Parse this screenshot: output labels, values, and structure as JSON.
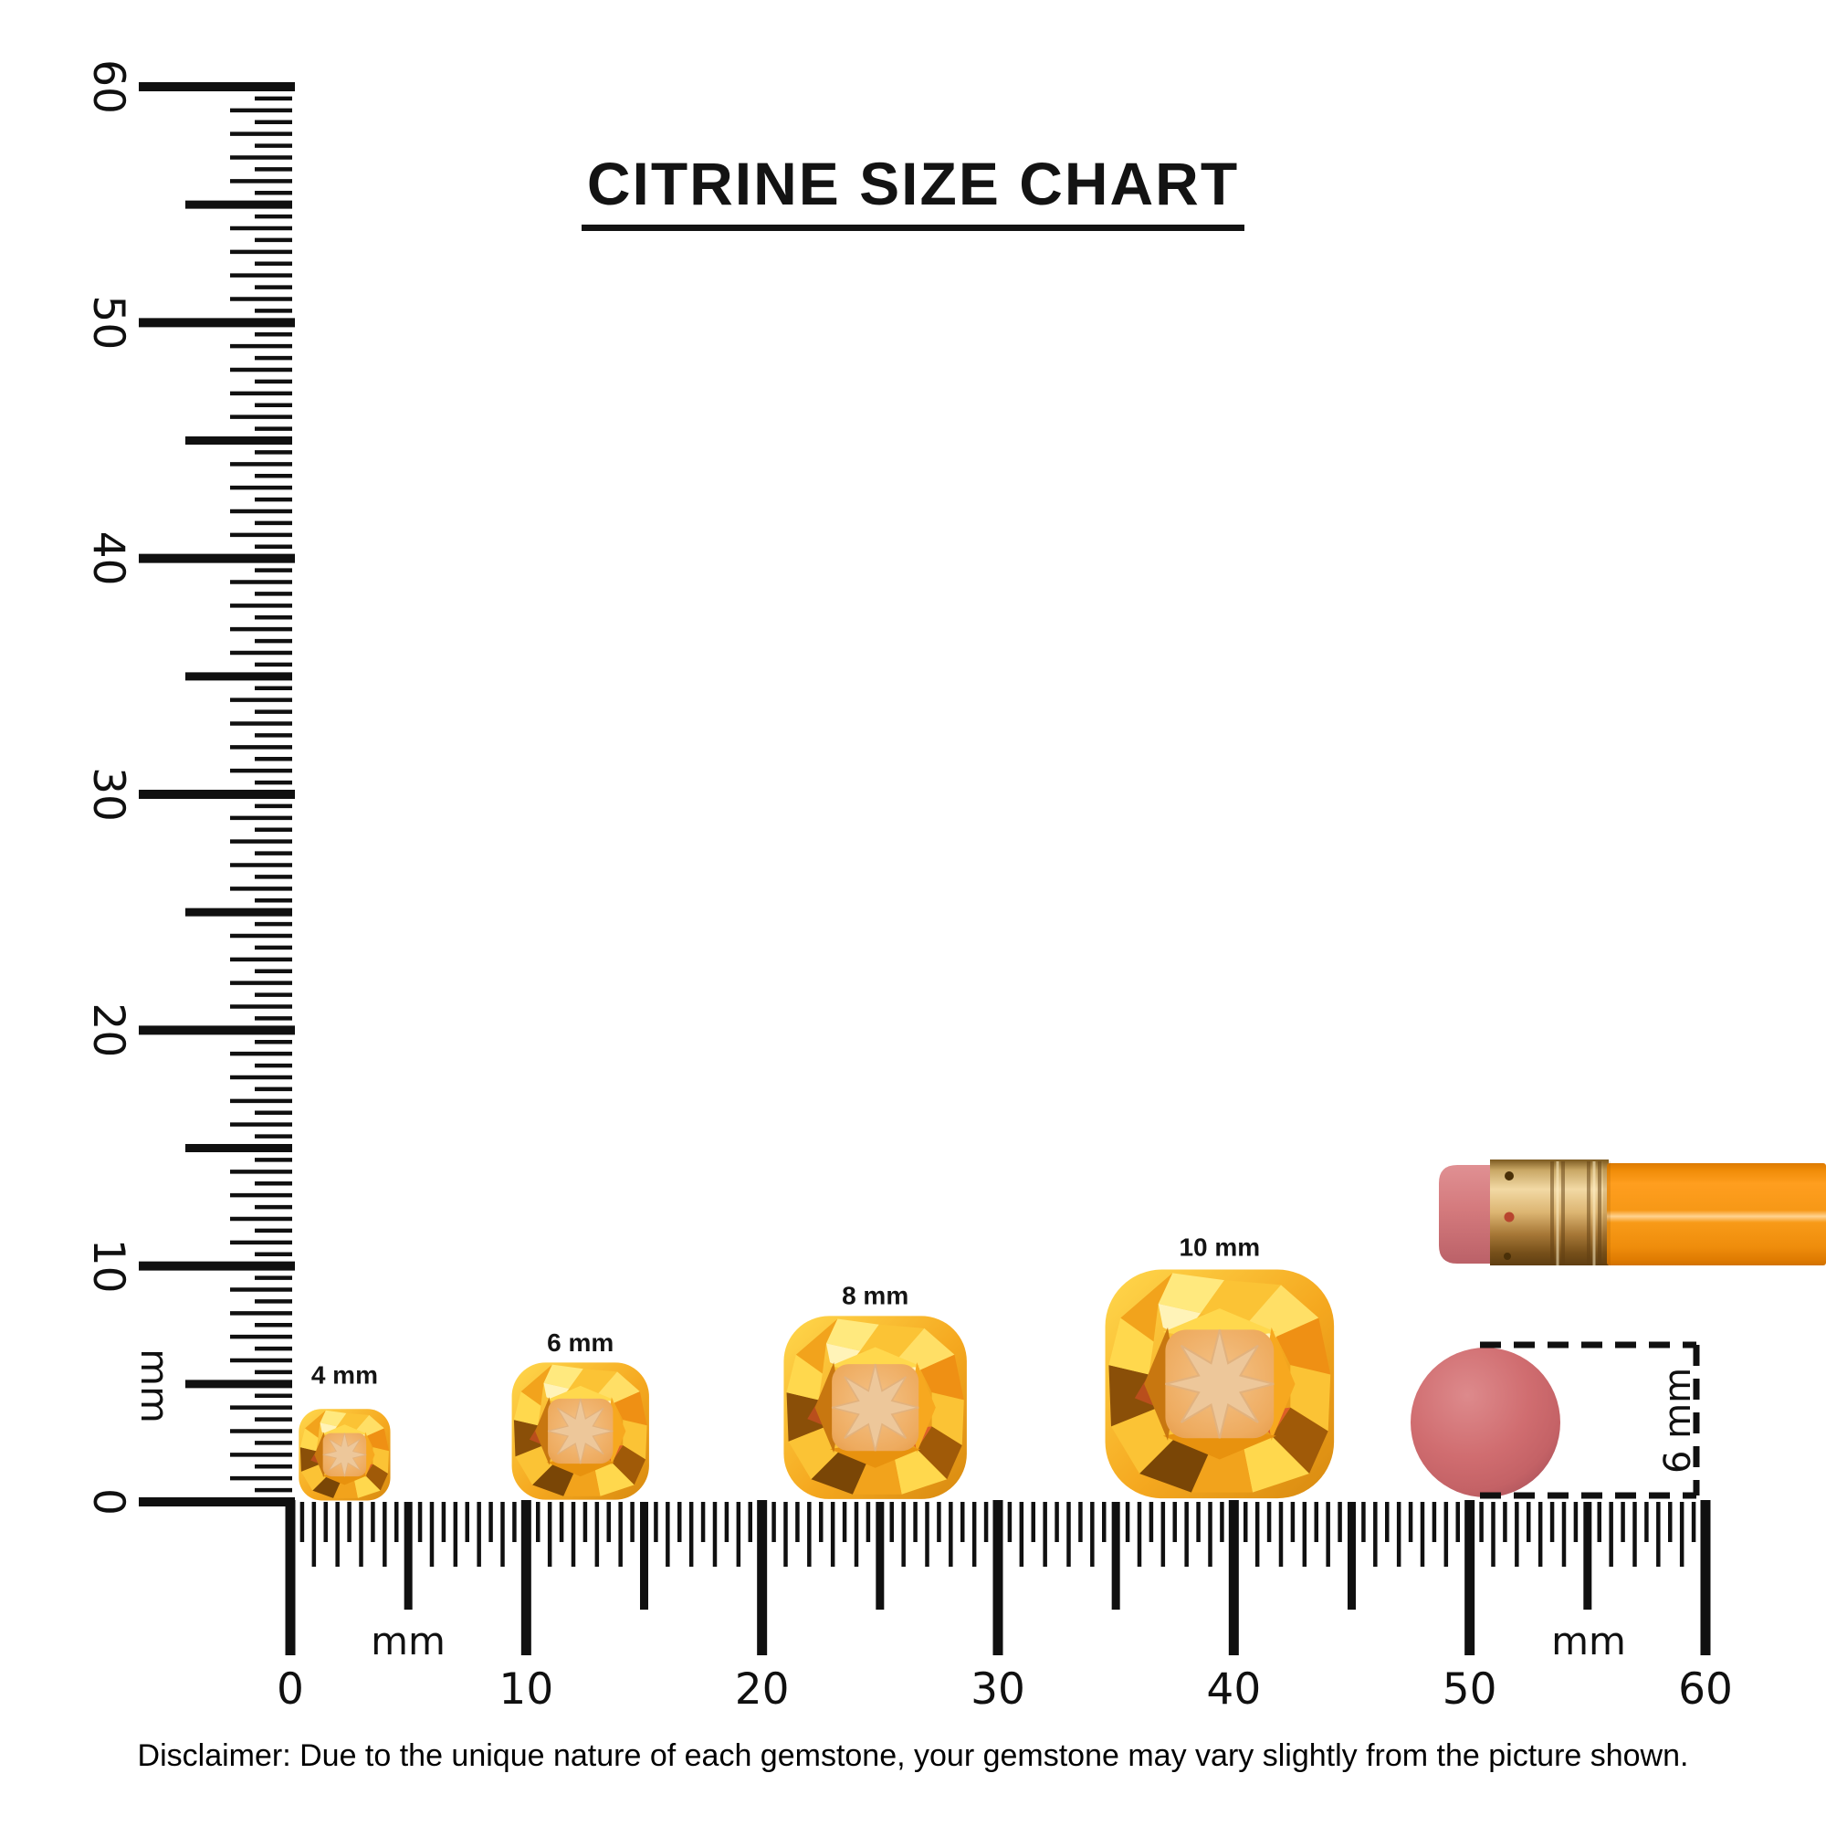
{
  "title": "CITRINE SIZE CHART",
  "disclaimer": "Disclaimer: Due to the unique nature of each gemstone, your gemstone may vary slightly from the picture shown.",
  "unit": "mm",
  "rulers": {
    "vertical": {
      "min": 0,
      "max": 60,
      "tick_step_mm": 0.5,
      "mid_step_mm": 5,
      "label_step_mm": 10,
      "labels": [
        "0",
        "10",
        "20",
        "30",
        "40",
        "50",
        "60"
      ],
      "unit_label": "mm"
    },
    "horizontal": {
      "min": 0,
      "max": 60,
      "tick_step_mm": 0.5,
      "mid_step_mm": 5,
      "label_step_mm": 10,
      "labels": [
        "0",
        "10",
        "20",
        "30",
        "40",
        "50",
        "60"
      ],
      "unit_labels": [
        "mm",
        "mm"
      ]
    }
  },
  "gems": [
    {
      "label": "4 mm",
      "size_mm": 4,
      "center_mm": 2.3
    },
    {
      "label": "6 mm",
      "size_mm": 6,
      "center_mm": 12.3
    },
    {
      "label": "8 mm",
      "size_mm": 8,
      "center_mm": 24.8
    },
    {
      "label": "10 mm",
      "size_mm": 10,
      "center_mm": 39.4
    }
  ],
  "eraser_annotation": {
    "label": "6 mm",
    "diameter_mm": 6
  },
  "colors": {
    "ink": "#101010",
    "gem_yellow": "#ffd84d",
    "gem_gold": "#f5a81f",
    "gem_amber": "#c87710",
    "gem_brown": "#7a4606",
    "gem_table": "#eeab5f",
    "gem_star": "#edc79a",
    "pencil_body_orange": "#f89a18",
    "pencil_highlight": "#ffd290",
    "ferrule_gold": "#d9b270",
    "eraser_pink": "#d47a7d",
    "eraser_top_pink": "#cf686c"
  }
}
